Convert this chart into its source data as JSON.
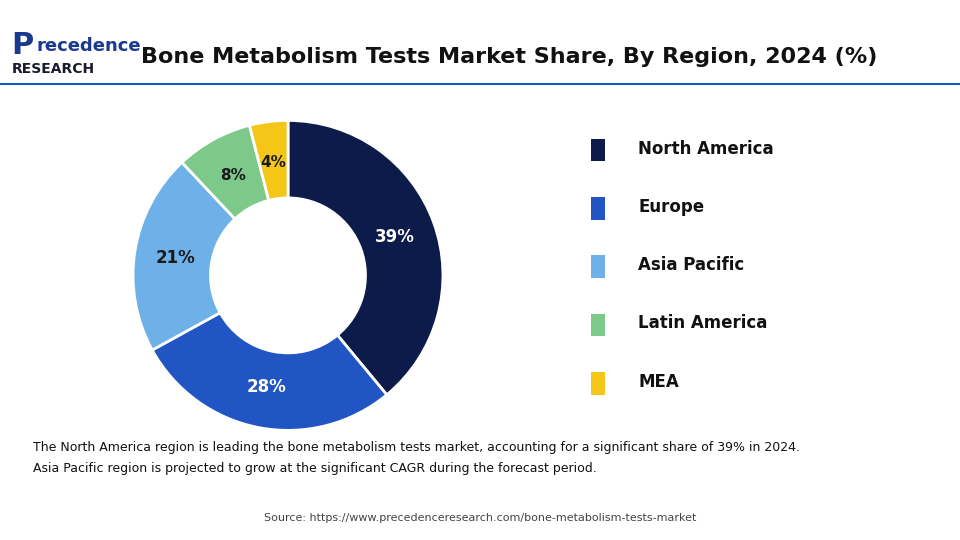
{
  "title": "Bone Metabolism Tests Market Share, By Region, 2024 (%)",
  "slices": [
    39,
    28,
    21,
    8,
    4
  ],
  "labels": [
    "North America",
    "Europe",
    "Asia Pacific",
    "Latin America",
    "MEA"
  ],
  "pct_labels": [
    "39%",
    "28%",
    "21%",
    "8%",
    "4%"
  ],
  "colors": [
    "#0d1b4b",
    "#2155c4",
    "#6eb0e8",
    "#7dc98a",
    "#f5c518"
  ],
  "legend_labels": [
    "North America",
    "Europe",
    "Asia Pacific",
    "Latin America",
    "MEA"
  ],
  "background_color": "#ffffff",
  "footer_text": "The North America region is leading the bone metabolism tests market, accounting for a significant share of 39% in 2024.\nAsia Pacific region is projected to grow at the significant CAGR during the forecast period.",
  "source_text": "Source: https://www.precedenceresearch.com/bone-metabolism-tests-market",
  "title_fontsize": 16,
  "footer_bg_color": "#dce8f7",
  "header_line_color": "#2155c4",
  "logo_blue": "#1a3a8f",
  "logo_dark": "#1a1a2e"
}
